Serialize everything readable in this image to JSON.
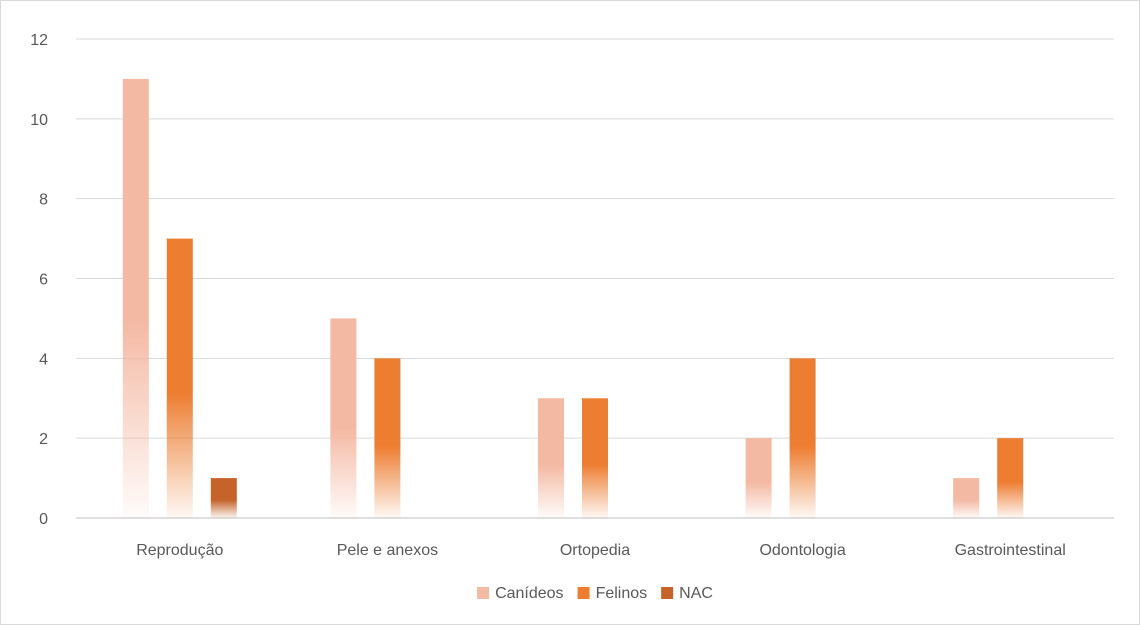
{
  "chart_data": {
    "type": "bar",
    "categories": [
      "Reprodução",
      "Pele e anexos",
      "Ortopedia",
      "Odontologia",
      "Gastrointestinal"
    ],
    "series": [
      {
        "name": "Canídeos",
        "values": [
          11,
          5,
          3,
          2,
          1
        ],
        "color": "#f4b9a3"
      },
      {
        "name": "Felinos",
        "values": [
          7,
          4,
          3,
          4,
          2
        ],
        "color": "#ed7d31"
      },
      {
        "name": "NAC",
        "values": [
          1,
          0,
          0,
          0,
          0
        ],
        "color": "#c5632a"
      }
    ],
    "y_ticks": [
      "0",
      "2",
      "4",
      "6",
      "8",
      "10",
      "12"
    ],
    "ylim": [
      0,
      12
    ],
    "grid": true,
    "legend": "bottom",
    "title": "",
    "xlabel": "",
    "ylabel": ""
  }
}
